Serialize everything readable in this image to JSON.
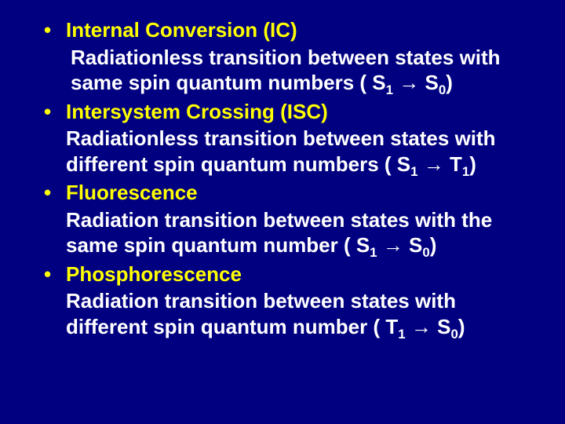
{
  "slide": {
    "background_color": "#000080",
    "heading_color": "#ffff00",
    "body_color": "#ffffff",
    "font_family": "Arial",
    "font_weight": "bold",
    "font_size_pt": 20,
    "items": [
      {
        "title": "Internal Conversion (IC)",
        "desc_prefix": " Radiationless transition between states with same spin quantum numbers ( S",
        "sub1": "1",
        "mid": " ",
        "arrow": "→",
        "after_arrow": " S",
        "sub2": "0",
        "suffix": ")"
      },
      {
        "title": "Intersystem Crossing (ISC)",
        "desc_prefix": "Radiationless transition between states with different  spin quantum numbers ( S",
        "sub1": "1",
        "mid": " ",
        "arrow": "→",
        "after_arrow": " T",
        "sub2": "1",
        "suffix": ")"
      },
      {
        "title": "Fluorescence",
        "desc_prefix": "Radiation transition between states with the same spin quantum number ( S",
        "sub1": "1",
        "mid": " ",
        "arrow": "→",
        "after_arrow": " S",
        "sub2": "0",
        "suffix": ")"
      },
      {
        "title": "Phosphorescence",
        "desc_prefix": "Radiation transition between states with different spin quantum number ( T",
        "sub1": "1",
        "mid": " ",
        "arrow": "→",
        "after_arrow": " S",
        "sub2": "0",
        "suffix": ")"
      }
    ]
  }
}
